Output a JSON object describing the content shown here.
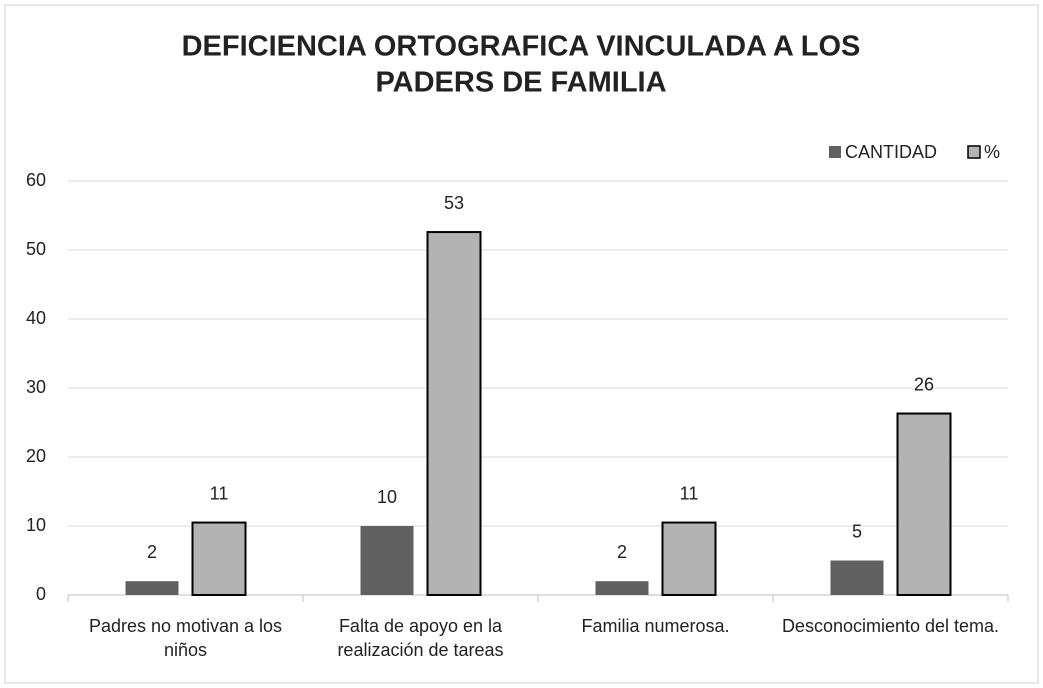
{
  "chart_data": {
    "type": "bar",
    "title": [
      "DEFICIENCIA ORTOGRAFICA VINCULADA A LOS",
      "PADERS DE FAMILIA"
    ],
    "categories": [
      "Padres no motivan a los niños",
      "Falta de apoyo en la realización de tareas",
      "Familia numerosa.",
      "Desconocimiento del tema."
    ],
    "series": [
      {
        "name": "CANTIDAD",
        "color": "#606060",
        "values": [
          2,
          10,
          2,
          5
        ]
      },
      {
        "name": "%",
        "color": "#b3b3b3",
        "values": [
          10.5,
          52.6,
          10.5,
          26.3
        ],
        "value_labels": [
          "11",
          "53",
          "11",
          "26"
        ]
      }
    ],
    "ylim": [
      0,
      60
    ],
    "yticks": [
      0,
      10,
      20,
      30,
      40,
      50,
      60
    ],
    "grid": true,
    "legend": "top-right"
  }
}
